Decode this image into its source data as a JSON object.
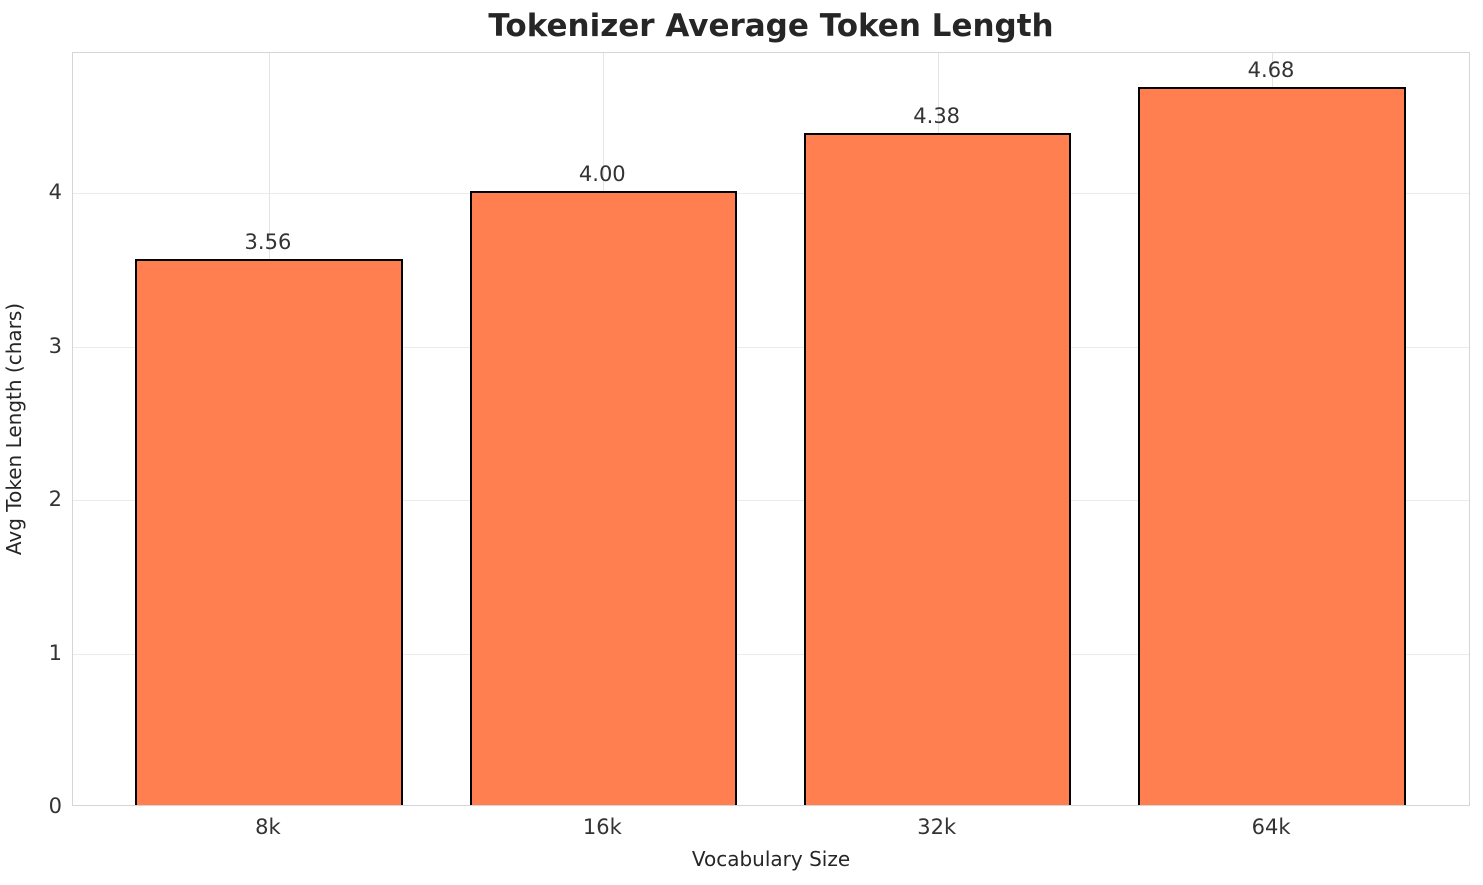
{
  "chart_data": {
    "type": "bar",
    "title": "Tokenizer Average Token Length",
    "xlabel": "Vocabulary Size",
    "ylabel": "Avg Token Length (chars)",
    "categories": [
      "8k",
      "16k",
      "32k",
      "64k"
    ],
    "values": [
      3.56,
      4.0,
      4.38,
      4.68
    ],
    "value_labels": [
      "3.56",
      "4.00",
      "4.38",
      "4.68"
    ],
    "yticks": [
      0,
      1,
      2,
      3,
      4
    ],
    "ytick_labels": [
      "0",
      "1",
      "2",
      "3",
      "4"
    ],
    "ylim": [
      0,
      4.915
    ],
    "xlim": [
      -0.586,
      3.595
    ],
    "bar_width": 0.8,
    "grid": "on",
    "legend": "none",
    "colors": {
      "bar_fill": "#FF7F50",
      "bar_edge": "#000000",
      "grid_line": "#ebebeb",
      "spine": "#d5d5d5",
      "text": "#262626",
      "tick_text": "#333333",
      "background": "#ffffff"
    }
  }
}
